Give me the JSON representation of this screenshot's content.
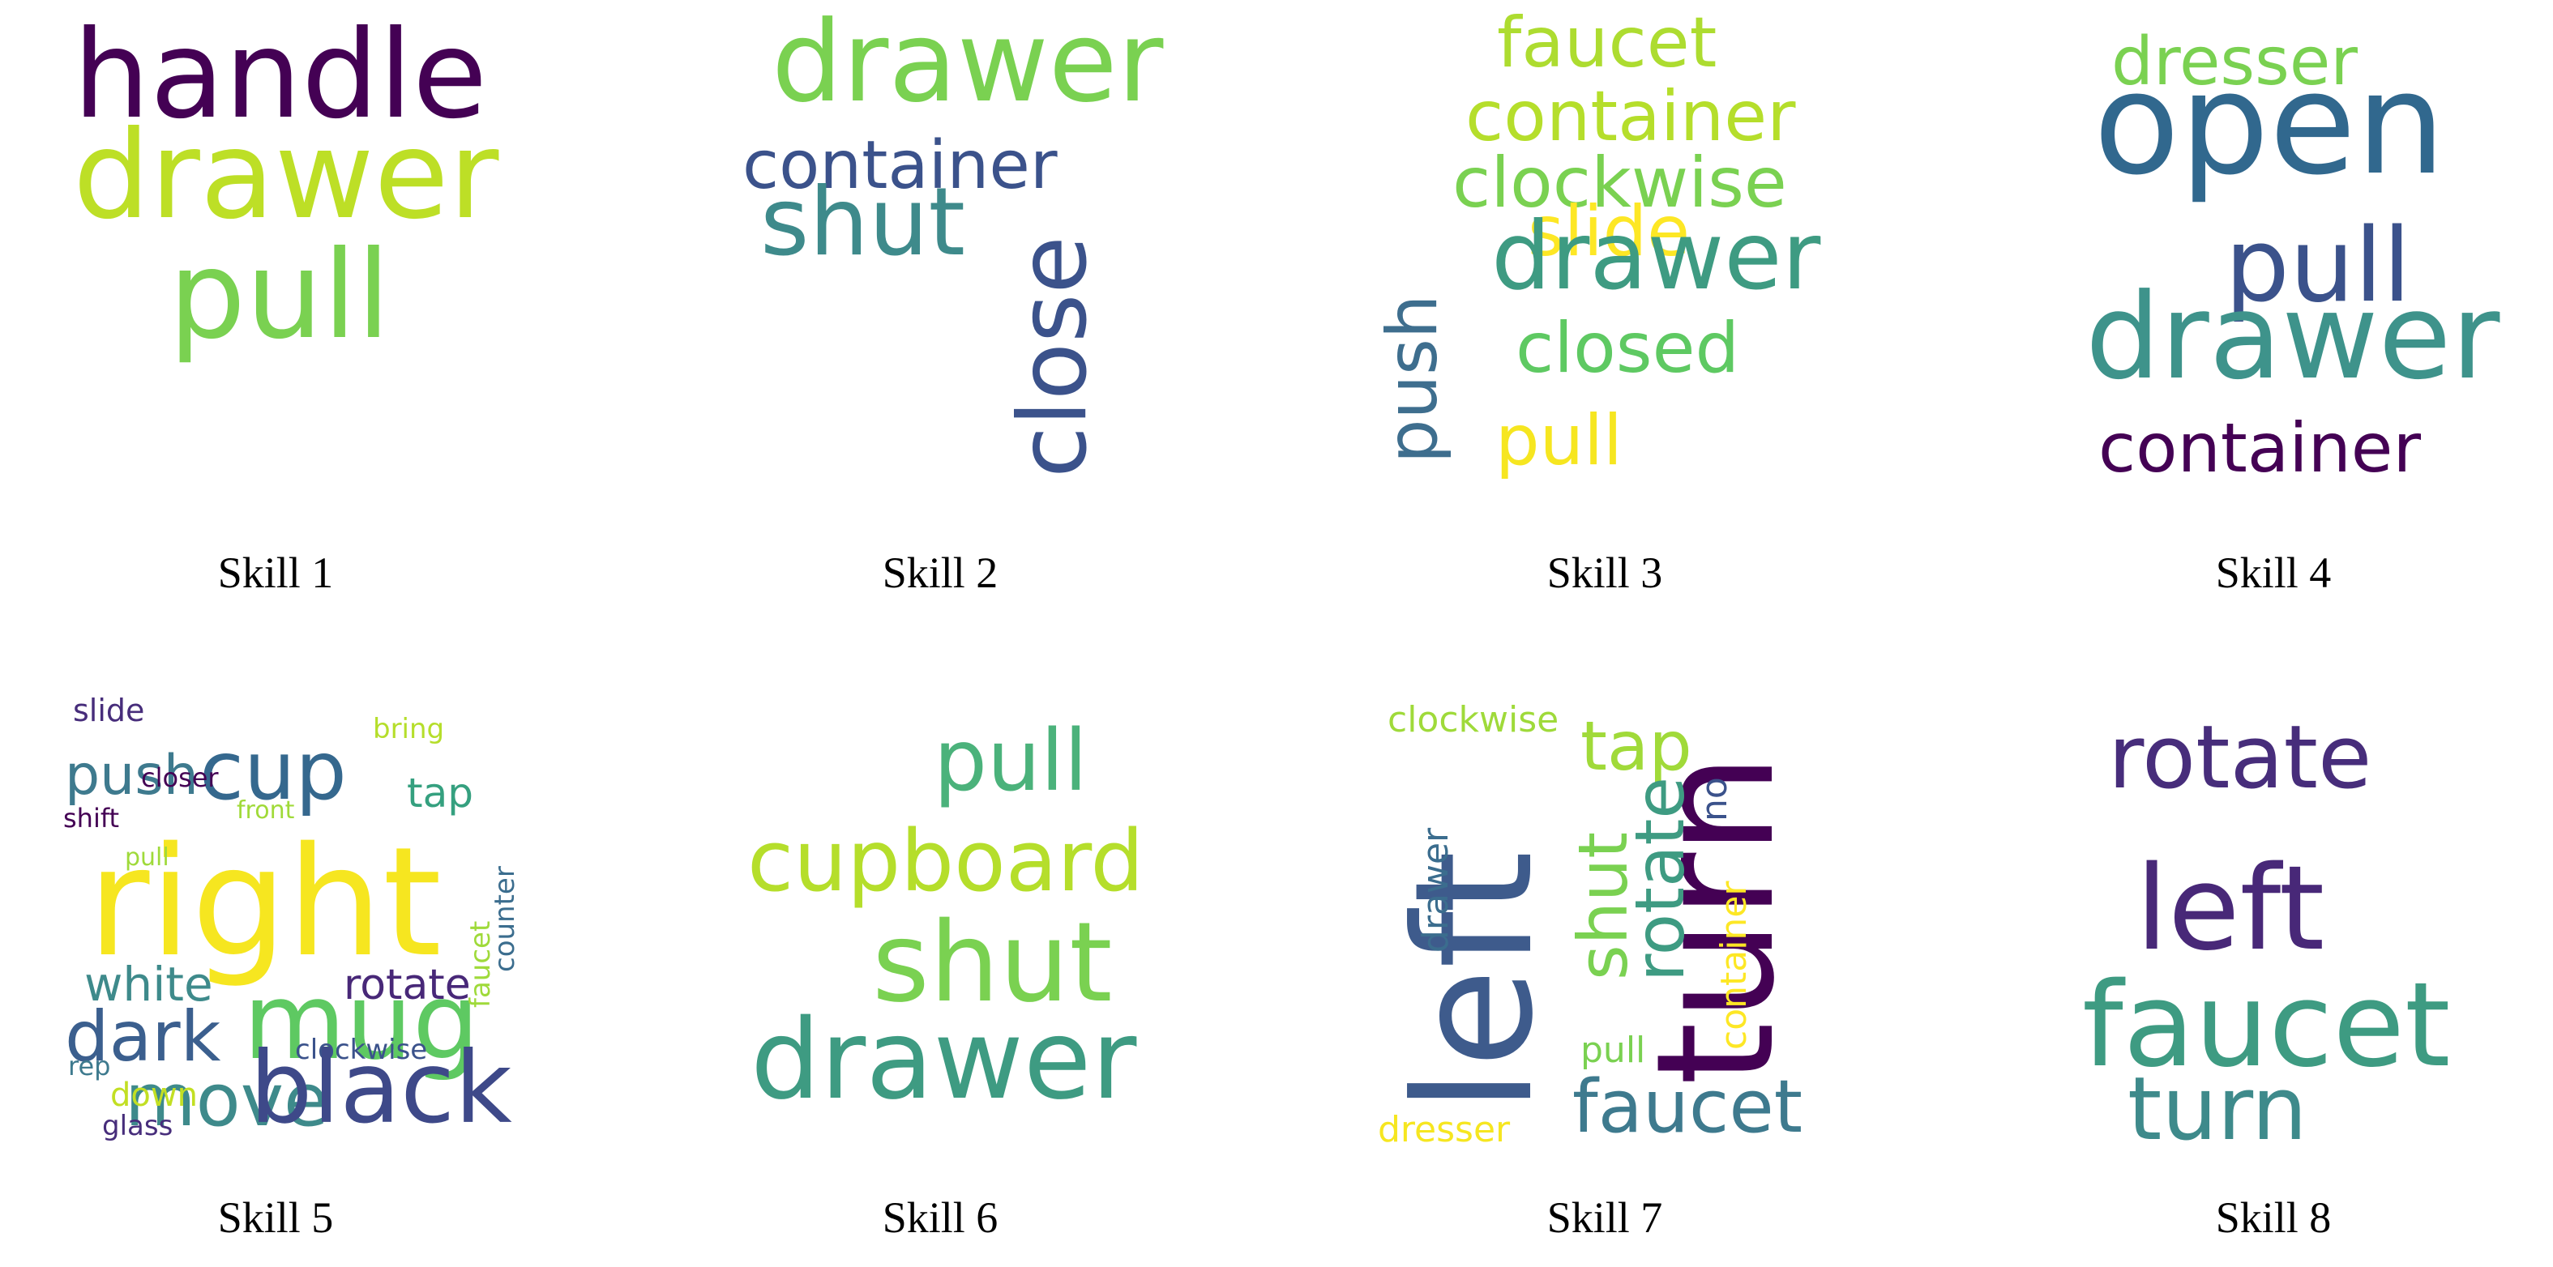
{
  "panels": [
    {
      "caption": "Skill 1",
      "words": [
        {
          "text": "handle",
          "color": "#440154"
        },
        {
          "text": "drawer",
          "color": "#bddf26"
        },
        {
          "text": "pull",
          "color": "#7ad151"
        }
      ]
    },
    {
      "caption": "Skill 2",
      "words": [
        {
          "text": "drawer",
          "color": "#7ad151"
        },
        {
          "text": "container",
          "color": "#3b528b"
        },
        {
          "text": "shut",
          "color": "#3e8a8b"
        },
        {
          "text": "close",
          "color": "#3b528b"
        }
      ]
    },
    {
      "caption": "Skill 3",
      "words": [
        {
          "text": "faucet",
          "color": "#addc30"
        },
        {
          "text": "container",
          "color": "#b5de2b"
        },
        {
          "text": "clockwise",
          "color": "#7ad151"
        },
        {
          "text": "slide",
          "color": "#fde725"
        },
        {
          "text": "drawer",
          "color": "#3e9b82"
        },
        {
          "text": "push",
          "color": "#3e6e8e"
        },
        {
          "text": "closed",
          "color": "#5ec962"
        },
        {
          "text": "pull",
          "color": "#f6e620"
        }
      ]
    },
    {
      "caption": "Skill 4",
      "words": [
        {
          "text": "dresser",
          "color": "#7ad151"
        },
        {
          "text": "open",
          "color": "#31688e"
        },
        {
          "text": "pull",
          "color": "#3b528b"
        },
        {
          "text": "drawer",
          "color": "#3e938b"
        },
        {
          "text": "container",
          "color": "#440154"
        }
      ]
    },
    {
      "caption": "Skill 5",
      "words": [
        {
          "text": "slide",
          "color": "#472d7b"
        },
        {
          "text": "push",
          "color": "#3e7a8e"
        },
        {
          "text": "cup",
          "color": "#35688e"
        },
        {
          "text": "bring",
          "color": "#b5de2b"
        },
        {
          "text": "tap",
          "color": "#35a07f"
        },
        {
          "text": "closer",
          "color": "#440154"
        },
        {
          "text": "front",
          "color": "#a0da39"
        },
        {
          "text": "shift",
          "color": "#440154"
        },
        {
          "text": "counter",
          "color": "#3b6d8e"
        },
        {
          "text": "right",
          "color": "#f6e620"
        },
        {
          "text": "pull",
          "color": "#9fda3a"
        },
        {
          "text": "white",
          "color": "#3e8a8b"
        },
        {
          "text": "rotate",
          "color": "#482878"
        },
        {
          "text": "dark",
          "color": "#3b5f8e"
        },
        {
          "text": "mug",
          "color": "#5ec962"
        },
        {
          "text": "faucet",
          "color": "#9fda3a"
        },
        {
          "text": "move",
          "color": "#3e8a8b"
        },
        {
          "text": "clockwise",
          "color": "#3b528b"
        },
        {
          "text": "rep",
          "color": "#3e7a8e"
        },
        {
          "text": "down",
          "color": "#c2df23"
        },
        {
          "text": "black",
          "color": "#3e4989"
        },
        {
          "text": "glass",
          "color": "#472d7b"
        }
      ]
    },
    {
      "caption": "Skill 6",
      "words": [
        {
          "text": "pull",
          "color": "#4bb27b"
        },
        {
          "text": "cupboard",
          "color": "#b5de2b"
        },
        {
          "text": "shut",
          "color": "#7ad151"
        },
        {
          "text": "drawer",
          "color": "#3e9b82"
        }
      ]
    },
    {
      "caption": "Skill 7",
      "words": [
        {
          "text": "clockwise",
          "color": "#9fda3a"
        },
        {
          "text": "tap",
          "color": "#a0da39"
        },
        {
          "text": "left",
          "color": "#3e5b8c"
        },
        {
          "text": "turn",
          "color": "#440154"
        },
        {
          "text": "drawer",
          "color": "#3b6d8e"
        },
        {
          "text": "shut",
          "color": "#7ad151"
        },
        {
          "text": "rotate",
          "color": "#3e9b82"
        },
        {
          "text": "no",
          "color": "#3b528b"
        },
        {
          "text": "container",
          "color": "#fde725"
        },
        {
          "text": "pull",
          "color": "#7ad151"
        },
        {
          "text": "faucet",
          "color": "#3e7a8e"
        },
        {
          "text": "dresser",
          "color": "#f6e620"
        }
      ]
    },
    {
      "caption": "Skill 8",
      "words": [
        {
          "text": "rotate",
          "color": "#472d7b"
        },
        {
          "text": "left",
          "color": "#482878"
        },
        {
          "text": "faucet",
          "color": "#3e9b82"
        },
        {
          "text": "turn",
          "color": "#3e8a8b"
        }
      ]
    }
  ]
}
